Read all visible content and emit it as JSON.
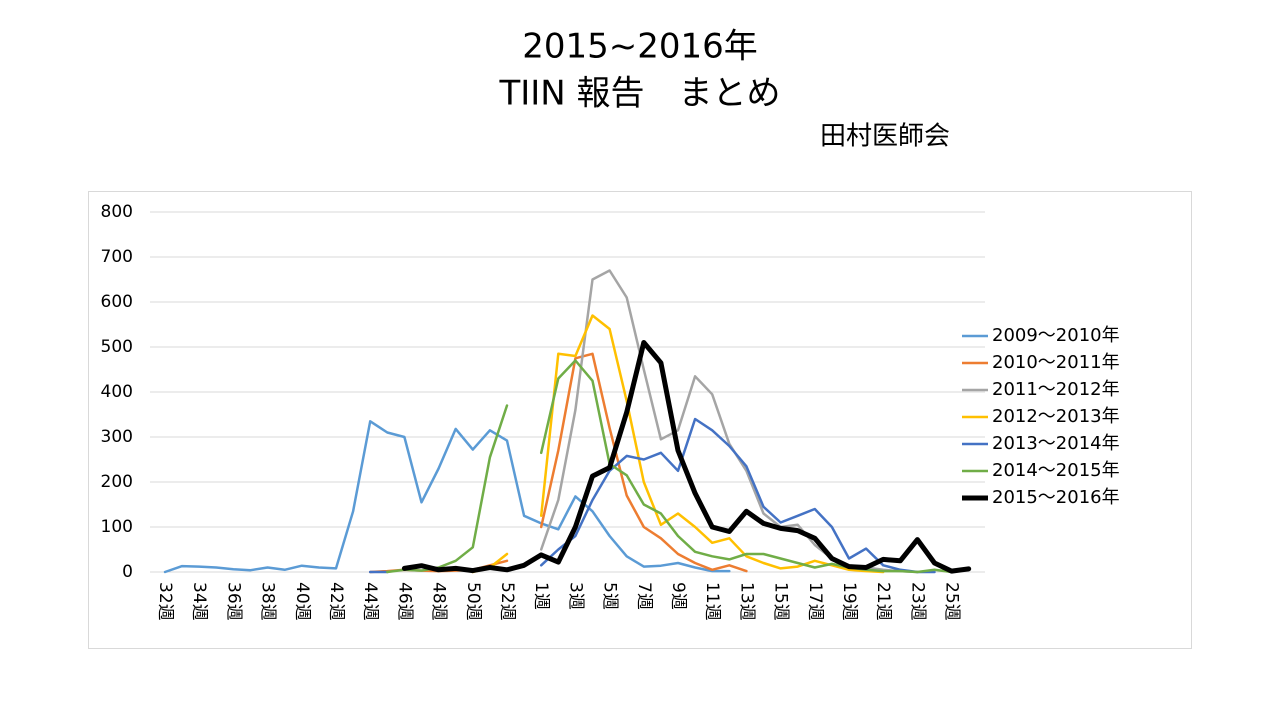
{
  "chart_data": {
    "type": "line",
    "title": [
      "2015~2016年",
      "TIIN 報告　まとめ"
    ],
    "subtitle": "田村医師会",
    "categories": [
      "32週",
      null,
      "34週",
      null,
      "36週",
      null,
      "38週",
      null,
      "40週",
      null,
      "42週",
      null,
      "44週",
      null,
      "46週",
      null,
      "48週",
      null,
      "50週",
      null,
      "52週",
      null,
      "1週",
      null,
      "3週",
      null,
      "5週",
      null,
      "7週",
      null,
      "9週",
      null,
      "11週",
      null,
      "13週",
      null,
      "15週",
      null,
      "17週",
      null,
      "19週",
      null,
      "21週",
      null,
      "23週",
      null,
      "25週",
      null
    ],
    "ylim": [
      0,
      800
    ],
    "yticks": [
      0,
      100,
      200,
      300,
      400,
      500,
      600,
      700,
      800
    ],
    "grid": true,
    "legend": "right",
    "series": [
      {
        "name": "2009～2010年",
        "color": "#5b9bd5",
        "width": 2.5,
        "values": [
          0,
          13,
          12,
          10,
          6,
          4,
          10,
          5,
          14,
          10,
          8,
          135,
          335,
          310,
          300,
          155,
          230,
          318,
          272,
          315,
          292,
          125,
          108,
          95,
          168,
          135,
          80,
          35,
          12,
          14,
          20,
          10,
          2,
          2,
          null,
          null,
          null,
          null,
          null,
          null,
          null,
          null,
          null,
          null,
          null,
          null,
          null,
          null
        ]
      },
      {
        "name": "2010～2011年",
        "color": "#ed7d31",
        "width": 2.5,
        "values": [
          null,
          null,
          null,
          null,
          null,
          null,
          null,
          null,
          null,
          null,
          null,
          null,
          0,
          2,
          5,
          3,
          2,
          3,
          5,
          15,
          25,
          null,
          100,
          270,
          475,
          485,
          320,
          170,
          100,
          75,
          40,
          20,
          5,
          15,
          2,
          null,
          null,
          null,
          null,
          null,
          null,
          null,
          null,
          null,
          null,
          null,
          null,
          null
        ]
      },
      {
        "name": "2011～2012年",
        "color": "#a5a5a5",
        "width": 2.5,
        "values": [
          null,
          null,
          null,
          null,
          null,
          null,
          null,
          null,
          null,
          null,
          null,
          null,
          null,
          null,
          null,
          null,
          null,
          null,
          null,
          null,
          null,
          null,
          50,
          160,
          360,
          650,
          670,
          610,
          450,
          295,
          315,
          435,
          395,
          285,
          225,
          130,
          100,
          105,
          60,
          30,
          15,
          10,
          5,
          2,
          0,
          null,
          null,
          null
        ]
      },
      {
        "name": "2012～2013年",
        "color": "#ffc000",
        "width": 2.5,
        "values": [
          null,
          null,
          null,
          null,
          null,
          null,
          null,
          null,
          null,
          null,
          null,
          null,
          null,
          null,
          null,
          null,
          null,
          null,
          0,
          10,
          40,
          null,
          125,
          485,
          480,
          570,
          540,
          380,
          200,
          105,
          130,
          100,
          65,
          75,
          35,
          20,
          8,
          12,
          25,
          15,
          5,
          2,
          0,
          null,
          null,
          null,
          null,
          null
        ]
      },
      {
        "name": "2013～2014年",
        "color": "#4472c4",
        "width": 2.5,
        "values": [
          null,
          null,
          null,
          null,
          null,
          null,
          null,
          null,
          null,
          null,
          null,
          null,
          0,
          0,
          null,
          null,
          null,
          null,
          null,
          null,
          null,
          null,
          15,
          50,
          80,
          160,
          225,
          258,
          250,
          265,
          225,
          340,
          315,
          280,
          235,
          145,
          110,
          125,
          140,
          100,
          30,
          52,
          15,
          5,
          0,
          0,
          null,
          null
        ]
      },
      {
        "name": "2014～2015年",
        "color": "#70ad47",
        "width": 2.5,
        "values": [
          null,
          null,
          null,
          null,
          null,
          null,
          null,
          null,
          null,
          null,
          null,
          null,
          null,
          0,
          5,
          3,
          10,
          25,
          55,
          255,
          370,
          null,
          265,
          430,
          470,
          425,
          240,
          215,
          150,
          130,
          80,
          45,
          35,
          28,
          40,
          40,
          30,
          20,
          10,
          18,
          10,
          5,
          2,
          2,
          0,
          5,
          0,
          null
        ]
      },
      {
        "name": "2015～2016年",
        "color": "#000000",
        "width": 5,
        "values": [
          null,
          null,
          null,
          null,
          null,
          null,
          null,
          null,
          null,
          null,
          null,
          null,
          null,
          null,
          8,
          14,
          5,
          8,
          3,
          10,
          5,
          15,
          38,
          22,
          100,
          213,
          232,
          355,
          510,
          465,
          270,
          175,
          100,
          90,
          135,
          108,
          97,
          92,
          75,
          30,
          12,
          10,
          28,
          25,
          72,
          20,
          2,
          7
        ]
      }
    ]
  }
}
